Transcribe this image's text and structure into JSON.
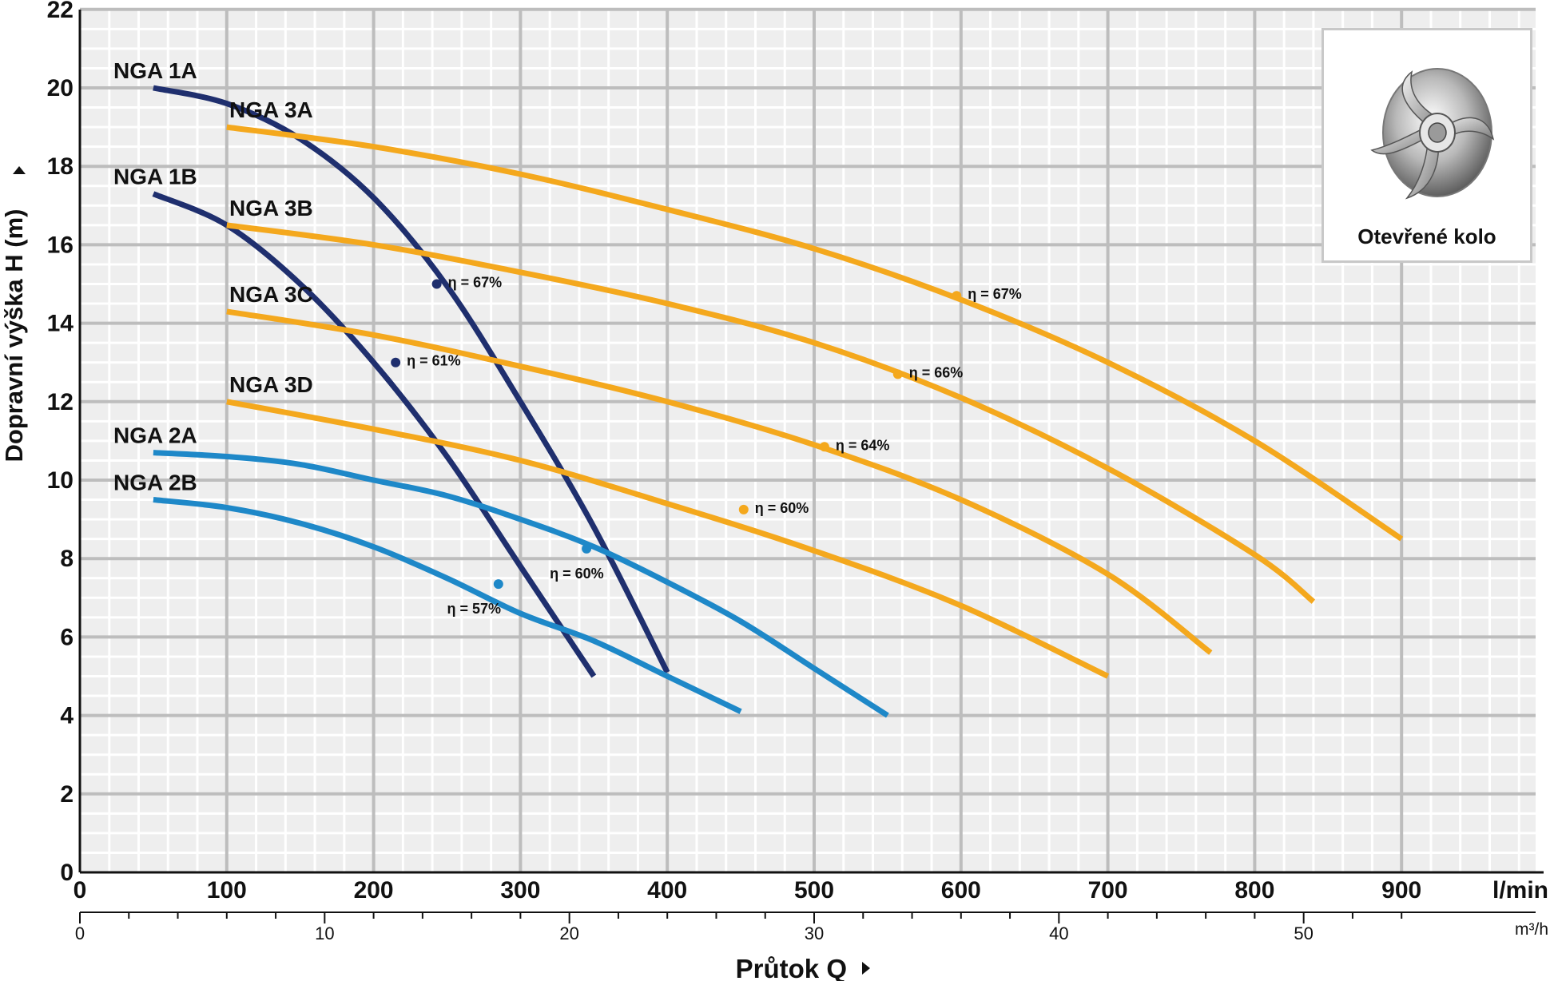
{
  "chart_data": {
    "type": "line",
    "title": "",
    "xlabel": "Průtok Q",
    "ylabel": "Dopravní výška H (m)",
    "x_unit": "l/min",
    "x2_unit": "m³/h",
    "xlim": [
      0,
      1000
    ],
    "ylim": [
      0,
      22
    ],
    "x_ticks": [
      "0",
      "100",
      "200",
      "300",
      "400",
      "500",
      "600",
      "700",
      "800",
      "900"
    ],
    "x2_ticks": [
      "0",
      "10",
      "20",
      "30",
      "40",
      "50"
    ],
    "x2_values": [
      0,
      10,
      20,
      30,
      40,
      50
    ],
    "y_ticks": [
      "0",
      "2",
      "4",
      "6",
      "8",
      "10",
      "12",
      "14",
      "16",
      "18",
      "20",
      "22"
    ],
    "grid": true,
    "series": [
      {
        "name": "NGA 1A",
        "color": "#1f2f6e",
        "x": [
          50,
          100,
          150,
          200,
          250,
          300,
          350,
          400
        ],
        "y": [
          20.0,
          19.6,
          18.7,
          17.2,
          14.95,
          12.0,
          8.8,
          5.1
        ],
        "efficiency": {
          "label": "η = 67%",
          "x": 243,
          "y": 15.0
        }
      },
      {
        "name": "NGA 1B",
        "color": "#1f2f6e",
        "x": [
          50,
          100,
          150,
          200,
          250,
          300,
          350
        ],
        "y": [
          17.3,
          16.5,
          15.0,
          13.0,
          10.6,
          7.8,
          5.0
        ],
        "efficiency": {
          "label": "η = 61%",
          "x": 215,
          "y": 13.0
        }
      },
      {
        "name": "NGA 2A",
        "color": "#1e88c8",
        "x": [
          50,
          100,
          150,
          200,
          250,
          300,
          350,
          400,
          450,
          500,
          550
        ],
        "y": [
          10.7,
          10.6,
          10.4,
          10.0,
          9.6,
          9.0,
          8.3,
          7.4,
          6.4,
          5.2,
          4.0
        ],
        "efficiency": {
          "label": "η = 60%",
          "x": 345,
          "y": 8.25
        }
      },
      {
        "name": "NGA 2B",
        "color": "#1e88c8",
        "x": [
          50,
          100,
          150,
          200,
          250,
          300,
          350,
          400,
          450
        ],
        "y": [
          9.5,
          9.3,
          8.9,
          8.3,
          7.5,
          6.6,
          5.9,
          5.0,
          4.1
        ],
        "efficiency": {
          "label": "η = 57%",
          "x": 285,
          "y": 7.35
        }
      },
      {
        "name": "NGA 3A",
        "color": "#f4a81d",
        "x": [
          100,
          200,
          300,
          400,
          500,
          600,
          700,
          800,
          900
        ],
        "y": [
          19.0,
          18.5,
          17.8,
          16.9,
          15.9,
          14.6,
          13.0,
          11.0,
          8.5
        ],
        "efficiency": {
          "label": "η = 67%",
          "x": 597,
          "y": 14.7
        }
      },
      {
        "name": "NGA 3B",
        "color": "#f4a81d",
        "x": [
          100,
          200,
          300,
          400,
          500,
          600,
          700,
          800,
          840
        ],
        "y": [
          16.5,
          16.0,
          15.3,
          14.5,
          13.5,
          12.1,
          10.3,
          8.1,
          6.9
        ],
        "efficiency": {
          "label": "η = 66%",
          "x": 557,
          "y": 12.7
        }
      },
      {
        "name": "NGA 3C",
        "color": "#f4a81d",
        "x": [
          100,
          200,
          300,
          400,
          500,
          600,
          700,
          770
        ],
        "y": [
          14.3,
          13.7,
          12.9,
          12.0,
          10.9,
          9.5,
          7.6,
          5.6
        ],
        "efficiency": {
          "label": "η = 64%",
          "x": 507,
          "y": 10.85
        }
      },
      {
        "name": "NGA 3D",
        "color": "#f4a81d",
        "x": [
          100,
          200,
          300,
          400,
          500,
          600,
          700
        ],
        "y": [
          12.0,
          11.3,
          10.5,
          9.4,
          8.2,
          6.8,
          5.0
        ],
        "efficiency": {
          "label": "η = 60%",
          "x": 452,
          "y": 9.25
        }
      }
    ]
  },
  "inset": {
    "caption": "Otevřené kolo",
    "image_icon": "open-impeller-icon"
  }
}
